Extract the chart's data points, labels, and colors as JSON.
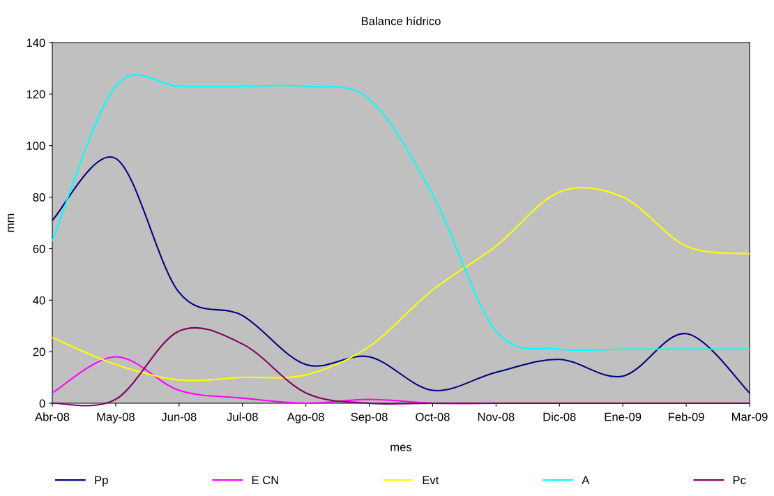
{
  "chart_data": {
    "type": "line",
    "title": "Balance hídrico",
    "xlabel": "mes",
    "ylabel": "mm",
    "categories": [
      "Abr-08",
      "May-08",
      "Jun-08",
      "Jul-08",
      "Ago-08",
      "Sep-08",
      "Oct-08",
      "Nov-08",
      "Dic-08",
      "Ene-09",
      "Feb-09",
      "Mar-09"
    ],
    "series": [
      {
        "name": "Pp",
        "color": "#000080",
        "values": [
          71,
          95,
          43,
          34,
          15,
          18,
          5,
          12,
          17,
          10.5,
          27,
          4
        ]
      },
      {
        "name": "E CN",
        "color": "#ff00ff",
        "values": [
          4,
          18,
          5,
          2,
          0,
          1.5,
          0,
          0,
          null,
          null,
          null,
          null
        ]
      },
      {
        "name": "Evt",
        "color": "#ffff00",
        "values": [
          25.5,
          15,
          9,
          10,
          11,
          22,
          44,
          61,
          82,
          80,
          61,
          58
        ]
      },
      {
        "name": "A",
        "color": "#00ffff",
        "values": [
          63,
          123,
          123,
          123,
          123,
          118,
          81,
          28,
          21,
          21,
          21,
          21
        ]
      },
      {
        "name": "Pc",
        "color": "#800060",
        "values": [
          0,
          1.5,
          28,
          23,
          4,
          0,
          0,
          0,
          0,
          0,
          0,
          0
        ]
      }
    ],
    "ylim": [
      0,
      140
    ],
    "yticks": [
      0,
      20,
      40,
      60,
      80,
      100,
      120,
      140
    ],
    "grid": false,
    "legend": "bottom",
    "marker": "none",
    "line_style": "solid"
  }
}
